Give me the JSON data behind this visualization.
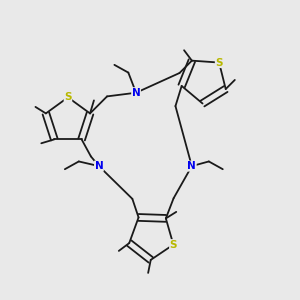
{
  "background_color": "#e9e9e9",
  "fig_size": [
    3.0,
    3.0
  ],
  "dpi": 100,
  "atom_colors": {
    "S": "#b8b800",
    "N": "#0000ee",
    "C": "#1a1a1a"
  },
  "bond_color": "#1a1a1a",
  "bond_width": 1.3,
  "font_size_S": 7.5,
  "font_size_N": 7.5
}
